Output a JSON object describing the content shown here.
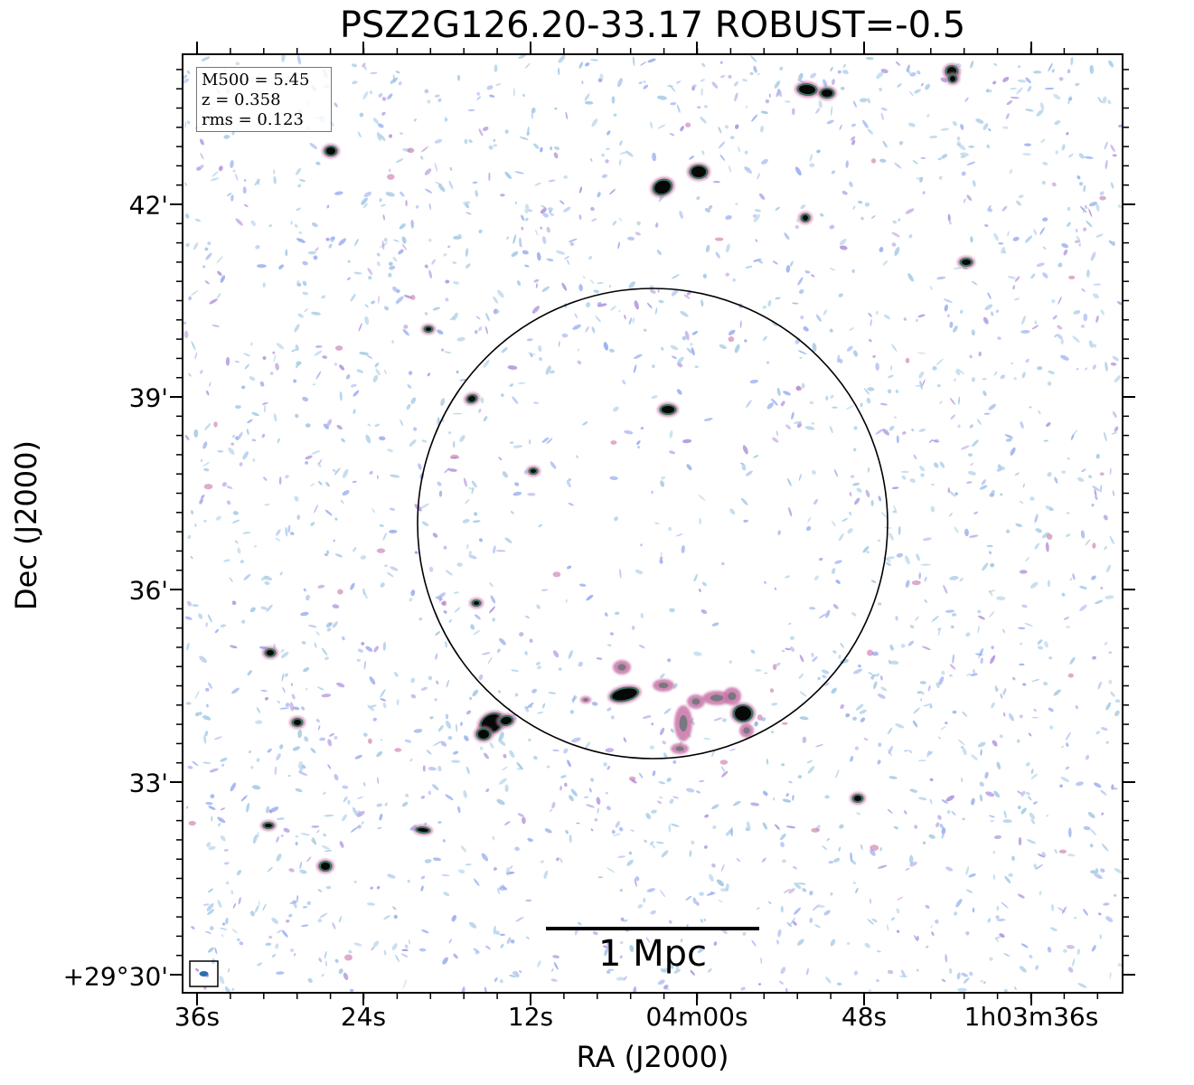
{
  "title": "PSZ2G126.20-33.17 ROBUST=-0.5",
  "axes": {
    "xlabel": "RA (J2000)",
    "ylabel": "Dec (J2000)",
    "xticks": [
      "36s",
      "24s",
      "12s",
      "04m00s",
      "48s",
      "1h03m36s"
    ],
    "yticks": [
      "+29°30'",
      "33'",
      "36'",
      "39'",
      "42'"
    ]
  },
  "info": {
    "m500": "M500 = 5.45",
    "z": "z = 0.358",
    "rms": "rms = 0.123"
  },
  "scalebar": {
    "label": "1 Mpc"
  },
  "colors": {
    "noise_light": "#a9cde6",
    "noise_blue": "#9fb2ef",
    "noise_purple": "#b59be0",
    "emission_pink": "#c873a8",
    "emission_green": "#2f6e55",
    "emission_core": "#050806",
    "circle": "#000000"
  }
}
